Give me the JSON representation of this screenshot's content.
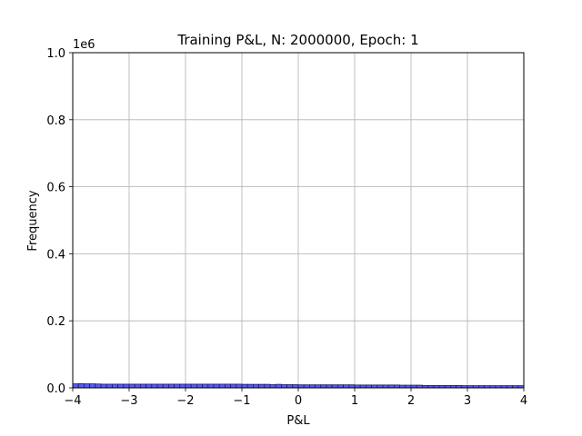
{
  "chart_data": {
    "type": "bar",
    "title": "Training P&L, N: 2000000, Epoch: 1",
    "xlabel": "P&L",
    "ylabel": "Frequency",
    "y_offset_label": "1e6",
    "xlim": [
      -4,
      4
    ],
    "ylim": [
      0,
      1.0
    ],
    "y_scale_factor": 1000000,
    "x_ticks": [
      -4,
      -3,
      -2,
      -1,
      0,
      1,
      2,
      3,
      4
    ],
    "x_tick_labels": [
      "−4",
      "−3",
      "−2",
      "−1",
      "0",
      "1",
      "2",
      "3",
      "4"
    ],
    "y_ticks": [
      0.0,
      0.2,
      0.4,
      0.6,
      0.8,
      1.0
    ],
    "y_tick_labels": [
      "0.0",
      "0.2",
      "0.4",
      "0.6",
      "0.8",
      "1.0"
    ],
    "grid": true,
    "bar_color": "#5a5af0",
    "edge_color": "#1a1a6e",
    "bin_width": 0.1,
    "bin_start": -4.0,
    "values": [
      12000,
      12500,
      12000,
      12000,
      11500,
      11000,
      11000,
      11000,
      11000,
      11000,
      11000,
      11000,
      11000,
      11000,
      11000,
      11000,
      11000,
      11000,
      11000,
      11000,
      11000,
      11000,
      11000,
      11000,
      11000,
      11000,
      11000,
      11000,
      11000,
      11000,
      10500,
      10500,
      10500,
      10500,
      10500,
      9500,
      10500,
      9500,
      9500,
      9500,
      9000,
      9000,
      9000,
      9000,
      9000,
      9000,
      9000,
      9000,
      9000,
      9000,
      8500,
      8500,
      8500,
      8500,
      8500,
      8500,
      8500,
      8500,
      8000,
      8000,
      8000,
      8000,
      7000,
      7000,
      7000,
      7000,
      7000,
      7000,
      7000,
      6500,
      6500,
      6500,
      6500,
      6500,
      6500,
      6500,
      6500,
      6500,
      6500,
      6500
    ]
  }
}
